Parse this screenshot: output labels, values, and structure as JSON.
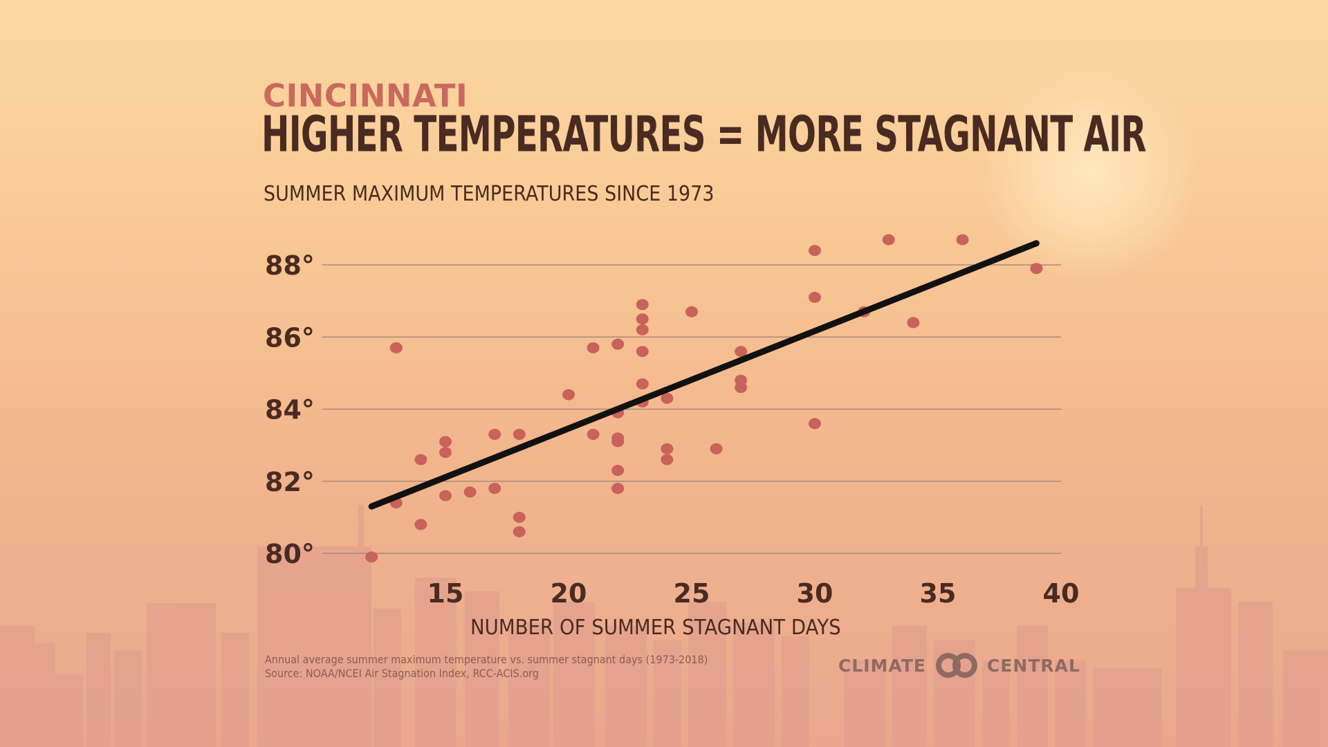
{
  "header": {
    "city": "CINCINNATI",
    "headline": "HIGHER TEMPERATURES = MORE STAGNANT AIR",
    "subtitle": "SUMMER MAXIMUM TEMPERATURES SINCE 1973"
  },
  "footer": {
    "note": "Annual average summer maximum temperature vs. summer stagnant days (1973-2018)",
    "source": "Source: NOAA/NCEI Air Stagnation Index, RCC-ACIS.org",
    "logo_left": "CLIMATE",
    "logo_right": "CENTRAL"
  },
  "colors": {
    "point": "#c8625a",
    "trendline": "#111111",
    "gridline": "#a98a7a",
    "text": "#4a2b22"
  },
  "chart_data": {
    "type": "scatter",
    "title": "SUMMER MAXIMUM TEMPERATURES SINCE 1973",
    "xlabel": "NUMBER OF SUMMER STAGNANT DAYS",
    "ylabel": "",
    "xlim": [
      10,
      40
    ],
    "ylim": [
      80,
      88
    ],
    "x_ticks": [
      15,
      20,
      25,
      30,
      35,
      40
    ],
    "x_tick_labels": [
      "15",
      "20",
      "25",
      "30",
      "35",
      "40"
    ],
    "y_ticks": [
      80,
      82,
      84,
      86,
      88
    ],
    "y_tick_labels": [
      "80°",
      "82°",
      "84°",
      "86°",
      "88°"
    ],
    "grid": "horizontal",
    "points": [
      {
        "x": 12,
        "y": 79.9
      },
      {
        "x": 13,
        "y": 85.7
      },
      {
        "x": 13,
        "y": 81.4
      },
      {
        "x": 14,
        "y": 82.6
      },
      {
        "x": 14,
        "y": 80.8
      },
      {
        "x": 15,
        "y": 83.1
      },
      {
        "x": 15,
        "y": 82.8
      },
      {
        "x": 15,
        "y": 81.6
      },
      {
        "x": 16,
        "y": 81.7
      },
      {
        "x": 17,
        "y": 83.3
      },
      {
        "x": 17,
        "y": 81.8
      },
      {
        "x": 18,
        "y": 83.3
      },
      {
        "x": 18,
        "y": 81.0
      },
      {
        "x": 18,
        "y": 80.6
      },
      {
        "x": 20,
        "y": 84.4
      },
      {
        "x": 21,
        "y": 85.7
      },
      {
        "x": 21,
        "y": 83.3
      },
      {
        "x": 22,
        "y": 85.8
      },
      {
        "x": 22,
        "y": 83.9
      },
      {
        "x": 22,
        "y": 83.2
      },
      {
        "x": 22,
        "y": 83.1
      },
      {
        "x": 22,
        "y": 82.3
      },
      {
        "x": 22,
        "y": 81.8
      },
      {
        "x": 23,
        "y": 86.9
      },
      {
        "x": 23,
        "y": 86.5
      },
      {
        "x": 23,
        "y": 86.2
      },
      {
        "x": 23,
        "y": 85.6
      },
      {
        "x": 23,
        "y": 84.7
      },
      {
        "x": 23,
        "y": 84.2
      },
      {
        "x": 24,
        "y": 84.3
      },
      {
        "x": 24,
        "y": 82.9
      },
      {
        "x": 24,
        "y": 82.6
      },
      {
        "x": 25,
        "y": 86.7
      },
      {
        "x": 26,
        "y": 82.9
      },
      {
        "x": 27,
        "y": 85.6
      },
      {
        "x": 27,
        "y": 84.8
      },
      {
        "x": 27,
        "y": 84.6
      },
      {
        "x": 30,
        "y": 88.4
      },
      {
        "x": 30,
        "y": 87.1
      },
      {
        "x": 30,
        "y": 83.6
      },
      {
        "x": 32,
        "y": 86.7
      },
      {
        "x": 33,
        "y": 88.7
      },
      {
        "x": 34,
        "y": 86.4
      },
      {
        "x": 36,
        "y": 88.7
      },
      {
        "x": 39,
        "y": 87.9
      }
    ],
    "trendline": {
      "x": [
        12,
        39
      ],
      "y": [
        81.3,
        88.6
      ]
    }
  }
}
